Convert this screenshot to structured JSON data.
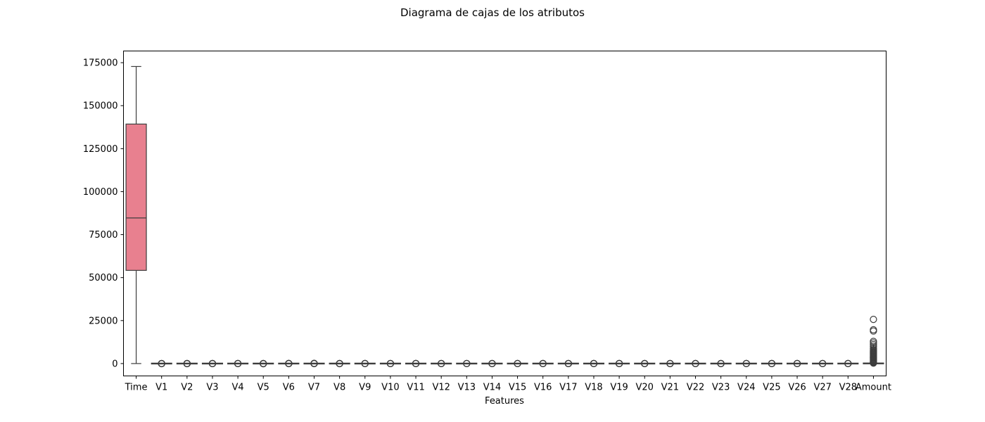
{
  "chart_data": {
    "type": "box",
    "title": "Diagrama de cajas de los atributos",
    "xlabel": "Features",
    "ylabel": "",
    "ylim": [
      -7200,
      181800
    ],
    "yticks": [
      0,
      25000,
      50000,
      75000,
      100000,
      125000,
      150000,
      175000
    ],
    "grid": false,
    "legend": "none",
    "categories": [
      "Time",
      "V1",
      "V2",
      "V3",
      "V4",
      "V5",
      "V6",
      "V7",
      "V8",
      "V9",
      "V10",
      "V11",
      "V12",
      "V13",
      "V14",
      "V15",
      "V16",
      "V17",
      "V18",
      "V19",
      "V20",
      "V21",
      "V22",
      "V23",
      "V24",
      "V25",
      "V26",
      "V27",
      "V28",
      "Amount"
    ],
    "colors": [
      "#e8808f",
      "#e5845b",
      "#d58a47",
      "#c29240",
      "#b19a3f",
      "#9fa23e",
      "#8ba93d",
      "#6db33d",
      "#3bb94c",
      "#38b686",
      "#37b39e",
      "#37b1ad",
      "#39afbb",
      "#3babc8",
      "#3fa7d6",
      "#4aa2e3",
      "#6b9bf0",
      "#8c94f4",
      "#a78bf3",
      "#bd83f2",
      "#d17aef",
      "#e371e8",
      "#e970d6",
      "#ec74c4",
      "#ee78b4",
      "#ef7ca6",
      "#ed7f9a",
      "#ea8090",
      "#e98189",
      "#e88286"
    ],
    "boxes": [
      {
        "name": "Time",
        "whislo": 0,
        "q1": 54200,
        "med": 84700,
        "q3": 139300,
        "whishi": 172800,
        "fliers": []
      },
      {
        "name": "V1",
        "whislo": -4.6,
        "q1": -0.92,
        "med": 0.02,
        "q3": 1.32,
        "whishi": 4.6,
        "fliers": [
          -56.4,
          -40,
          -30,
          -20,
          -10,
          2.5
        ]
      },
      {
        "name": "V2",
        "whislo": -2.7,
        "q1": -0.6,
        "med": 0.07,
        "q3": 0.8,
        "whishi": 2.9,
        "fliers": [
          -72.7,
          -50,
          -30,
          -10,
          10,
          22.1
        ]
      },
      {
        "name": "V3",
        "whislo": -3.2,
        "q1": -0.89,
        "med": 0.18,
        "q3": 1.03,
        "whishi": 3.9,
        "fliers": [
          -48.3,
          -30,
          -10,
          5,
          9.4
        ]
      },
      {
        "name": "V4",
        "whislo": -3.3,
        "q1": -0.85,
        "med": -0.02,
        "q3": 0.74,
        "whishi": 3.1,
        "fliers": [
          -5.7,
          5,
          10,
          16.9
        ]
      },
      {
        "name": "V5",
        "whislo": -2.7,
        "q1": -0.69,
        "med": -0.05,
        "q3": 0.61,
        "whishi": 2.6,
        "fliers": [
          -113.7,
          -60,
          -20,
          10,
          34.8
        ]
      },
      {
        "name": "V6",
        "whislo": -2.6,
        "q1": -0.77,
        "med": -0.27,
        "q3": 0.4,
        "whishi": 2.1,
        "fliers": [
          -26.2,
          -10,
          5,
          30,
          73.3
        ]
      },
      {
        "name": "V7",
        "whislo": -2.3,
        "q1": -0.55,
        "med": 0.04,
        "q3": 0.57,
        "whishi": 2.2,
        "fliers": [
          -43.6,
          -20,
          10,
          60,
          120.6
        ]
      },
      {
        "name": "V8",
        "whislo": -0.9,
        "q1": -0.21,
        "med": 0.02,
        "q3": 0.33,
        "whishi": 1.1,
        "fliers": [
          -73.2,
          -40,
          -10,
          5,
          20
        ]
      },
      {
        "name": "V9",
        "whislo": -2.7,
        "q1": -0.64,
        "med": -0.05,
        "q3": 0.6,
        "whishi": 2.5,
        "fliers": [
          -13.4,
          -5,
          5,
          15.6
        ]
      },
      {
        "name": "V10",
        "whislo": -2.2,
        "q1": -0.54,
        "med": -0.09,
        "q3": 0.45,
        "whishi": 1.9,
        "fliers": [
          -24.6,
          -10,
          5,
          23.7
        ]
      },
      {
        "name": "V11",
        "whislo": -2.6,
        "q1": -0.76,
        "med": -0.03,
        "q3": 0.74,
        "whishi": 3,
        "fliers": [
          -4.8,
          5,
          10,
          12
        ]
      },
      {
        "name": "V12",
        "whislo": -1.9,
        "q1": -0.41,
        "med": 0.14,
        "q3": 0.62,
        "whishi": 2.2,
        "fliers": [
          -18.7,
          -10,
          5,
          7.8
        ]
      },
      {
        "name": "V13",
        "whislo": -2.6,
        "q1": -0.65,
        "med": -0.01,
        "q3": 0.66,
        "whishi": 2.6,
        "fliers": [
          -5.8,
          5,
          7.1
        ]
      },
      {
        "name": "V14",
        "whislo": -1.8,
        "q1": -0.43,
        "med": 0.05,
        "q3": 0.49,
        "whishi": 1.8,
        "fliers": [
          -19.2,
          -10,
          5,
          10.5
        ]
      },
      {
        "name": "V15",
        "whislo": -2.3,
        "q1": -0.58,
        "med": 0.05,
        "q3": 0.65,
        "whishi": 2.4,
        "fliers": [
          -4.5,
          5,
          8.9
        ]
      },
      {
        "name": "V16",
        "whislo": -2.1,
        "q1": -0.47,
        "med": 0.07,
        "q3": 0.52,
        "whishi": 1.9,
        "fliers": [
          -14.1,
          -5,
          5,
          17.3
        ]
      },
      {
        "name": "V17",
        "whislo": -1.5,
        "q1": -0.48,
        "med": -0.07,
        "q3": 0.4,
        "whishi": 1.7,
        "fliers": [
          -25.2,
          -10,
          5,
          9.3
        ]
      },
      {
        "name": "V18",
        "whislo": -2.1,
        "q1": -0.5,
        "med": 0,
        "q3": 0.5,
        "whishi": 2,
        "fliers": [
          -9.5,
          -4,
          4,
          5
        ]
      },
      {
        "name": "V19",
        "whislo": -1.9,
        "q1": -0.46,
        "med": 0,
        "q3": 0.46,
        "whishi": 1.8,
        "fliers": [
          -7.2,
          -3,
          3,
          5.6
        ]
      },
      {
        "name": "V20",
        "whislo": -0.8,
        "q1": -0.21,
        "med": -0.06,
        "q3": 0.13,
        "whishi": 0.6,
        "fliers": [
          -54.5,
          -20,
          10,
          39.4
        ]
      },
      {
        "name": "V21",
        "whislo": -0.9,
        "q1": -0.23,
        "med": -0.03,
        "q3": 0.19,
        "whishi": 0.8,
        "fliers": [
          -34.8,
          -10,
          10,
          27.2
        ]
      },
      {
        "name": "V22",
        "whislo": -2.6,
        "q1": -0.54,
        "med": 0.01,
        "q3": 0.53,
        "whishi": 2.3,
        "fliers": [
          -10.9,
          -5,
          5,
          10.5
        ]
      },
      {
        "name": "V23",
        "whislo": -0.6,
        "q1": -0.16,
        "med": -0.01,
        "q3": 0.15,
        "whishi": 0.6,
        "fliers": [
          -44.8,
          -20,
          10,
          22.5
        ]
      },
      {
        "name": "V24",
        "whislo": -1.6,
        "q1": -0.35,
        "med": 0.04,
        "q3": 0.44,
        "whishi": 1.6,
        "fliers": [
          -2.8,
          3,
          4.6
        ]
      },
      {
        "name": "V25",
        "whislo": -1.2,
        "q1": -0.32,
        "med": 0.02,
        "q3": 0.35,
        "whishi": 1.3,
        "fliers": [
          -10.3,
          -5,
          3,
          7.5
        ]
      },
      {
        "name": "V26",
        "whislo": -1.4,
        "q1": -0.33,
        "med": -0.05,
        "q3": 0.24,
        "whishi": 1.1,
        "fliers": [
          -2.6,
          2,
          3.5
        ]
      },
      {
        "name": "V27",
        "whislo": -0.3,
        "q1": -0.07,
        "med": 0,
        "q3": 0.09,
        "whishi": 0.3,
        "fliers": [
          -22.6,
          -10,
          10,
          31.6
        ]
      },
      {
        "name": "V28",
        "whislo": -0.2,
        "q1": -0.05,
        "med": 0.01,
        "q3": 0.08,
        "whishi": 0.3,
        "fliers": [
          -15.4,
          -5,
          10,
          33.8
        ]
      },
      {
        "name": "Amount",
        "whislo": 0,
        "q1": 5.6,
        "med": 22,
        "q3": 77.2,
        "whishi": 184.5,
        "fliers": [
          250,
          500,
          800,
          1000,
          1300,
          1600,
          2000,
          2300,
          2600,
          3000,
          3300,
          3600,
          4000,
          4300,
          4600,
          5000,
          5400,
          5800,
          6200,
          6600,
          7000,
          7500,
          8000,
          8800,
          10000,
          11000,
          12000,
          12900,
          18900,
          19660,
          25691
        ]
      }
    ]
  }
}
